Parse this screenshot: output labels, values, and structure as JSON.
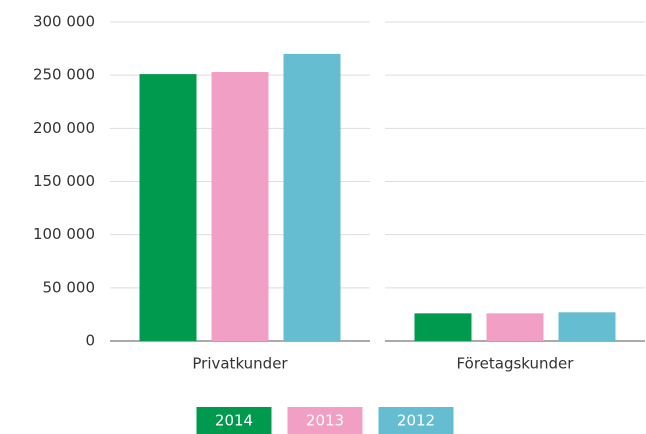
{
  "chart_data": {
    "type": "bar",
    "categories": [
      "Privatkunder",
      "Företagskunder"
    ],
    "series": [
      {
        "name": "2014",
        "color": "#009a4e",
        "values": [
          251000,
          26000
        ]
      },
      {
        "name": "2013",
        "color": "#f29fc5",
        "values": [
          253000,
          26000
        ]
      },
      {
        "name": "2012",
        "color": "#65bdd1",
        "values": [
          270000,
          27000
        ]
      }
    ],
    "ylim": [
      0,
      300000
    ],
    "yticks": [
      0,
      {
        "value": 50000,
        "label": "50 000"
      },
      {
        "value": 100000,
        "label": "100 000"
      },
      {
        "value": 150000,
        "label": "150 000"
      },
      {
        "value": 200000,
        "label": "200 000"
      },
      {
        "value": 250000,
        "label": "250 000"
      },
      {
        "value": 300000,
        "label": "300 000"
      }
    ],
    "grid": true,
    "legend": "bottom"
  }
}
